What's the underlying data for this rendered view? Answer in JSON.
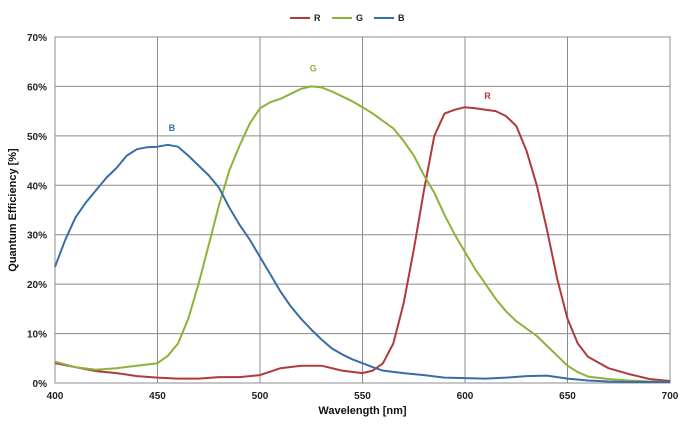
{
  "chart_data": {
    "type": "line",
    "title": "",
    "xlabel": "Wavelength [nm]",
    "ylabel": "Quantum Efficiency  [%]",
    "xlim": [
      400,
      700
    ],
    "ylim": [
      0,
      70
    ],
    "x_ticks": [
      "400",
      "450",
      "500",
      "550",
      "600",
      "650",
      "700"
    ],
    "x_tick_values": [
      400,
      450,
      500,
      550,
      600,
      650,
      700
    ],
    "y_ticks": [
      "0%",
      "10%",
      "20%",
      "30%",
      "40%",
      "50%",
      "60%",
      "70%"
    ],
    "y_tick_values": [
      0,
      10,
      20,
      30,
      40,
      50,
      60,
      70
    ],
    "grid": true,
    "legend_position": "top-center",
    "series": [
      {
        "name": "R",
        "color": "#b03a3a",
        "label_annotation": {
          "text": "R",
          "x": 611,
          "y": 57.5
        },
        "points": [
          [
            400,
            4
          ],
          [
            410,
            3.2
          ],
          [
            420,
            2.4
          ],
          [
            430,
            2
          ],
          [
            440,
            1.4
          ],
          [
            450,
            1.1
          ],
          [
            460,
            0.9
          ],
          [
            470,
            0.9
          ],
          [
            480,
            1.2
          ],
          [
            490,
            1.2
          ],
          [
            500,
            1.6
          ],
          [
            510,
            3
          ],
          [
            520,
            3.5
          ],
          [
            530,
            3.5
          ],
          [
            540,
            2.5
          ],
          [
            550,
            2
          ],
          [
            555,
            2.5
          ],
          [
            560,
            4
          ],
          [
            565,
            8
          ],
          [
            570,
            16
          ],
          [
            575,
            27
          ],
          [
            580,
            39
          ],
          [
            585,
            50
          ],
          [
            590,
            54.5
          ],
          [
            595,
            55.3
          ],
          [
            600,
            55.8
          ],
          [
            605,
            55.6
          ],
          [
            610,
            55.3
          ],
          [
            615,
            55
          ],
          [
            620,
            54
          ],
          [
            625,
            52
          ],
          [
            630,
            47
          ],
          [
            635,
            40
          ],
          [
            640,
            31
          ],
          [
            645,
            21
          ],
          [
            650,
            13
          ],
          [
            655,
            8
          ],
          [
            660,
            5.3
          ],
          [
            670,
            3
          ],
          [
            680,
            1.8
          ],
          [
            690,
            0.8
          ],
          [
            700,
            0.4
          ]
        ]
      },
      {
        "name": "G",
        "color": "#8db23a",
        "label_annotation": {
          "text": "G",
          "x": 526,
          "y": 63
        },
        "points": [
          [
            400,
            4.3
          ],
          [
            410,
            3.2
          ],
          [
            420,
            2.7
          ],
          [
            430,
            3
          ],
          [
            440,
            3.5
          ],
          [
            450,
            4
          ],
          [
            455,
            5.5
          ],
          [
            460,
            8
          ],
          [
            465,
            13
          ],
          [
            470,
            20
          ],
          [
            475,
            28
          ],
          [
            480,
            36
          ],
          [
            485,
            43
          ],
          [
            490,
            48
          ],
          [
            495,
            52.5
          ],
          [
            500,
            55.6
          ],
          [
            505,
            56.8
          ],
          [
            510,
            57.5
          ],
          [
            515,
            58.5
          ],
          [
            520,
            59.5
          ],
          [
            525,
            60
          ],
          [
            530,
            59.8
          ],
          [
            535,
            59
          ],
          [
            540,
            58
          ],
          [
            545,
            57
          ],
          [
            550,
            55.8
          ],
          [
            555,
            54.5
          ],
          [
            560,
            53
          ],
          [
            565,
            51.5
          ],
          [
            570,
            49
          ],
          [
            575,
            46
          ],
          [
            580,
            42
          ],
          [
            585,
            38.5
          ],
          [
            590,
            34
          ],
          [
            595,
            30
          ],
          [
            600,
            26.5
          ],
          [
            605,
            23
          ],
          [
            610,
            20
          ],
          [
            615,
            17
          ],
          [
            620,
            14.5
          ],
          [
            625,
            12.5
          ],
          [
            630,
            11
          ],
          [
            635,
            9.5
          ],
          [
            640,
            7.5
          ],
          [
            645,
            5.5
          ],
          [
            650,
            3.5
          ],
          [
            655,
            2.2
          ],
          [
            660,
            1.3
          ],
          [
            670,
            0.8
          ],
          [
            680,
            0.5
          ],
          [
            690,
            0.3
          ],
          [
            700,
            0.2
          ]
        ]
      },
      {
        "name": "B",
        "color": "#3a6ca8",
        "label_annotation": {
          "text": "B",
          "x": 457,
          "y": 51
        },
        "points": [
          [
            400,
            23.5
          ],
          [
            405,
            29
          ],
          [
            410,
            33.5
          ],
          [
            415,
            36.5
          ],
          [
            420,
            39
          ],
          [
            425,
            41.5
          ],
          [
            430,
            43.5
          ],
          [
            435,
            46
          ],
          [
            440,
            47.3
          ],
          [
            445,
            47.7
          ],
          [
            450,
            47.8
          ],
          [
            455,
            48.2
          ],
          [
            460,
            47.8
          ],
          [
            465,
            46
          ],
          [
            470,
            44
          ],
          [
            475,
            42
          ],
          [
            480,
            39.5
          ],
          [
            485,
            35.5
          ],
          [
            490,
            32
          ],
          [
            495,
            29
          ],
          [
            500,
            25.5
          ],
          [
            505,
            22
          ],
          [
            510,
            18.5
          ],
          [
            515,
            15.5
          ],
          [
            520,
            13
          ],
          [
            525,
            10.8
          ],
          [
            530,
            8.8
          ],
          [
            535,
            7
          ],
          [
            540,
            5.8
          ],
          [
            545,
            4.8
          ],
          [
            550,
            4
          ],
          [
            555,
            3.2
          ],
          [
            560,
            2.5
          ],
          [
            570,
            2
          ],
          [
            580,
            1.6
          ],
          [
            590,
            1.1
          ],
          [
            600,
            1
          ],
          [
            610,
            0.9
          ],
          [
            620,
            1.1
          ],
          [
            630,
            1.4
          ],
          [
            640,
            1.5
          ],
          [
            650,
            0.9
          ],
          [
            660,
            0.5
          ],
          [
            670,
            0.3
          ],
          [
            680,
            0.2
          ],
          [
            690,
            0.2
          ],
          [
            700,
            0.2
          ]
        ]
      }
    ]
  }
}
